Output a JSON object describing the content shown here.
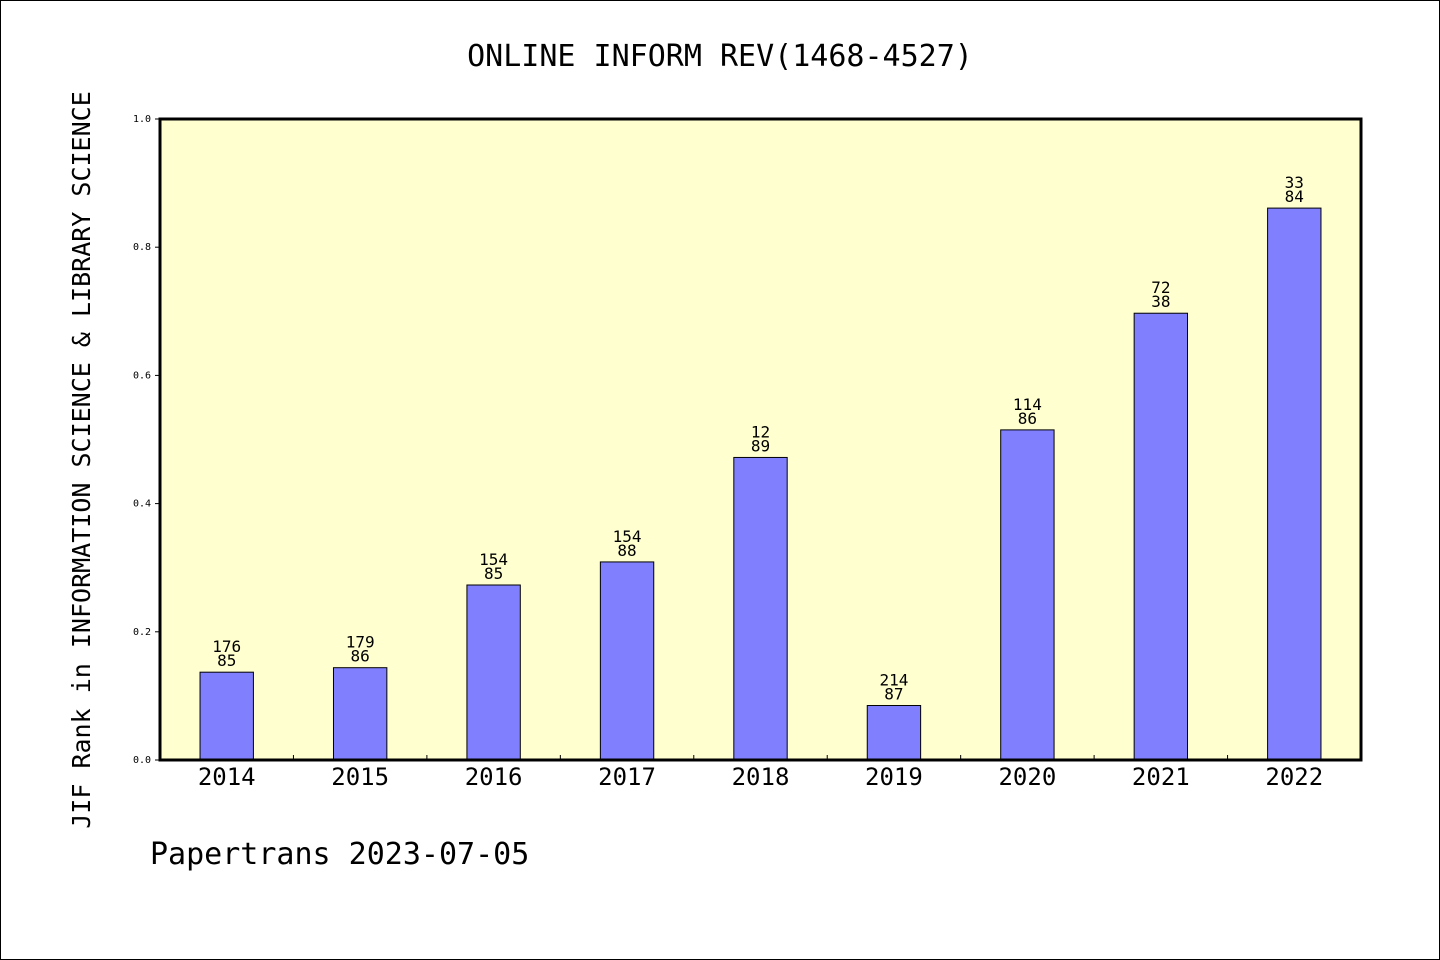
{
  "chart_data": {
    "type": "bar",
    "title": "ONLINE INFORM REV(1468-4527)",
    "xlabel": "",
    "ylabel": "JIF Rank in INFORMATION SCIENCE & LIBRARY SCIENCE",
    "ylim": [
      0,
      1.0
    ],
    "yticks": [
      "0.0",
      "0.2",
      "0.4",
      "0.6",
      "0.8",
      "1.0"
    ],
    "categories": [
      "2014",
      "2015",
      "2016",
      "2017",
      "2018",
      "2019",
      "2020",
      "2021",
      "2022"
    ],
    "values": [
      0.137,
      0.144,
      0.273,
      0.309,
      0.472,
      0.085,
      0.515,
      0.697,
      0.861
    ],
    "rank_labels": [
      "176",
      "179",
      "154",
      "154",
      "12",
      "214",
      "114",
      "72",
      "33"
    ],
    "total_labels": [
      "85",
      "86",
      "85",
      "88",
      "89",
      "87",
      "86",
      "38",
      "84"
    ],
    "grid": false,
    "legend": "none",
    "colors": {
      "bar_fill": "#8080ff",
      "bar_stroke": "#000000",
      "plot_background": "#ffffd0",
      "axis": "#000000"
    }
  },
  "footer": "Papertrans 2023-07-05"
}
